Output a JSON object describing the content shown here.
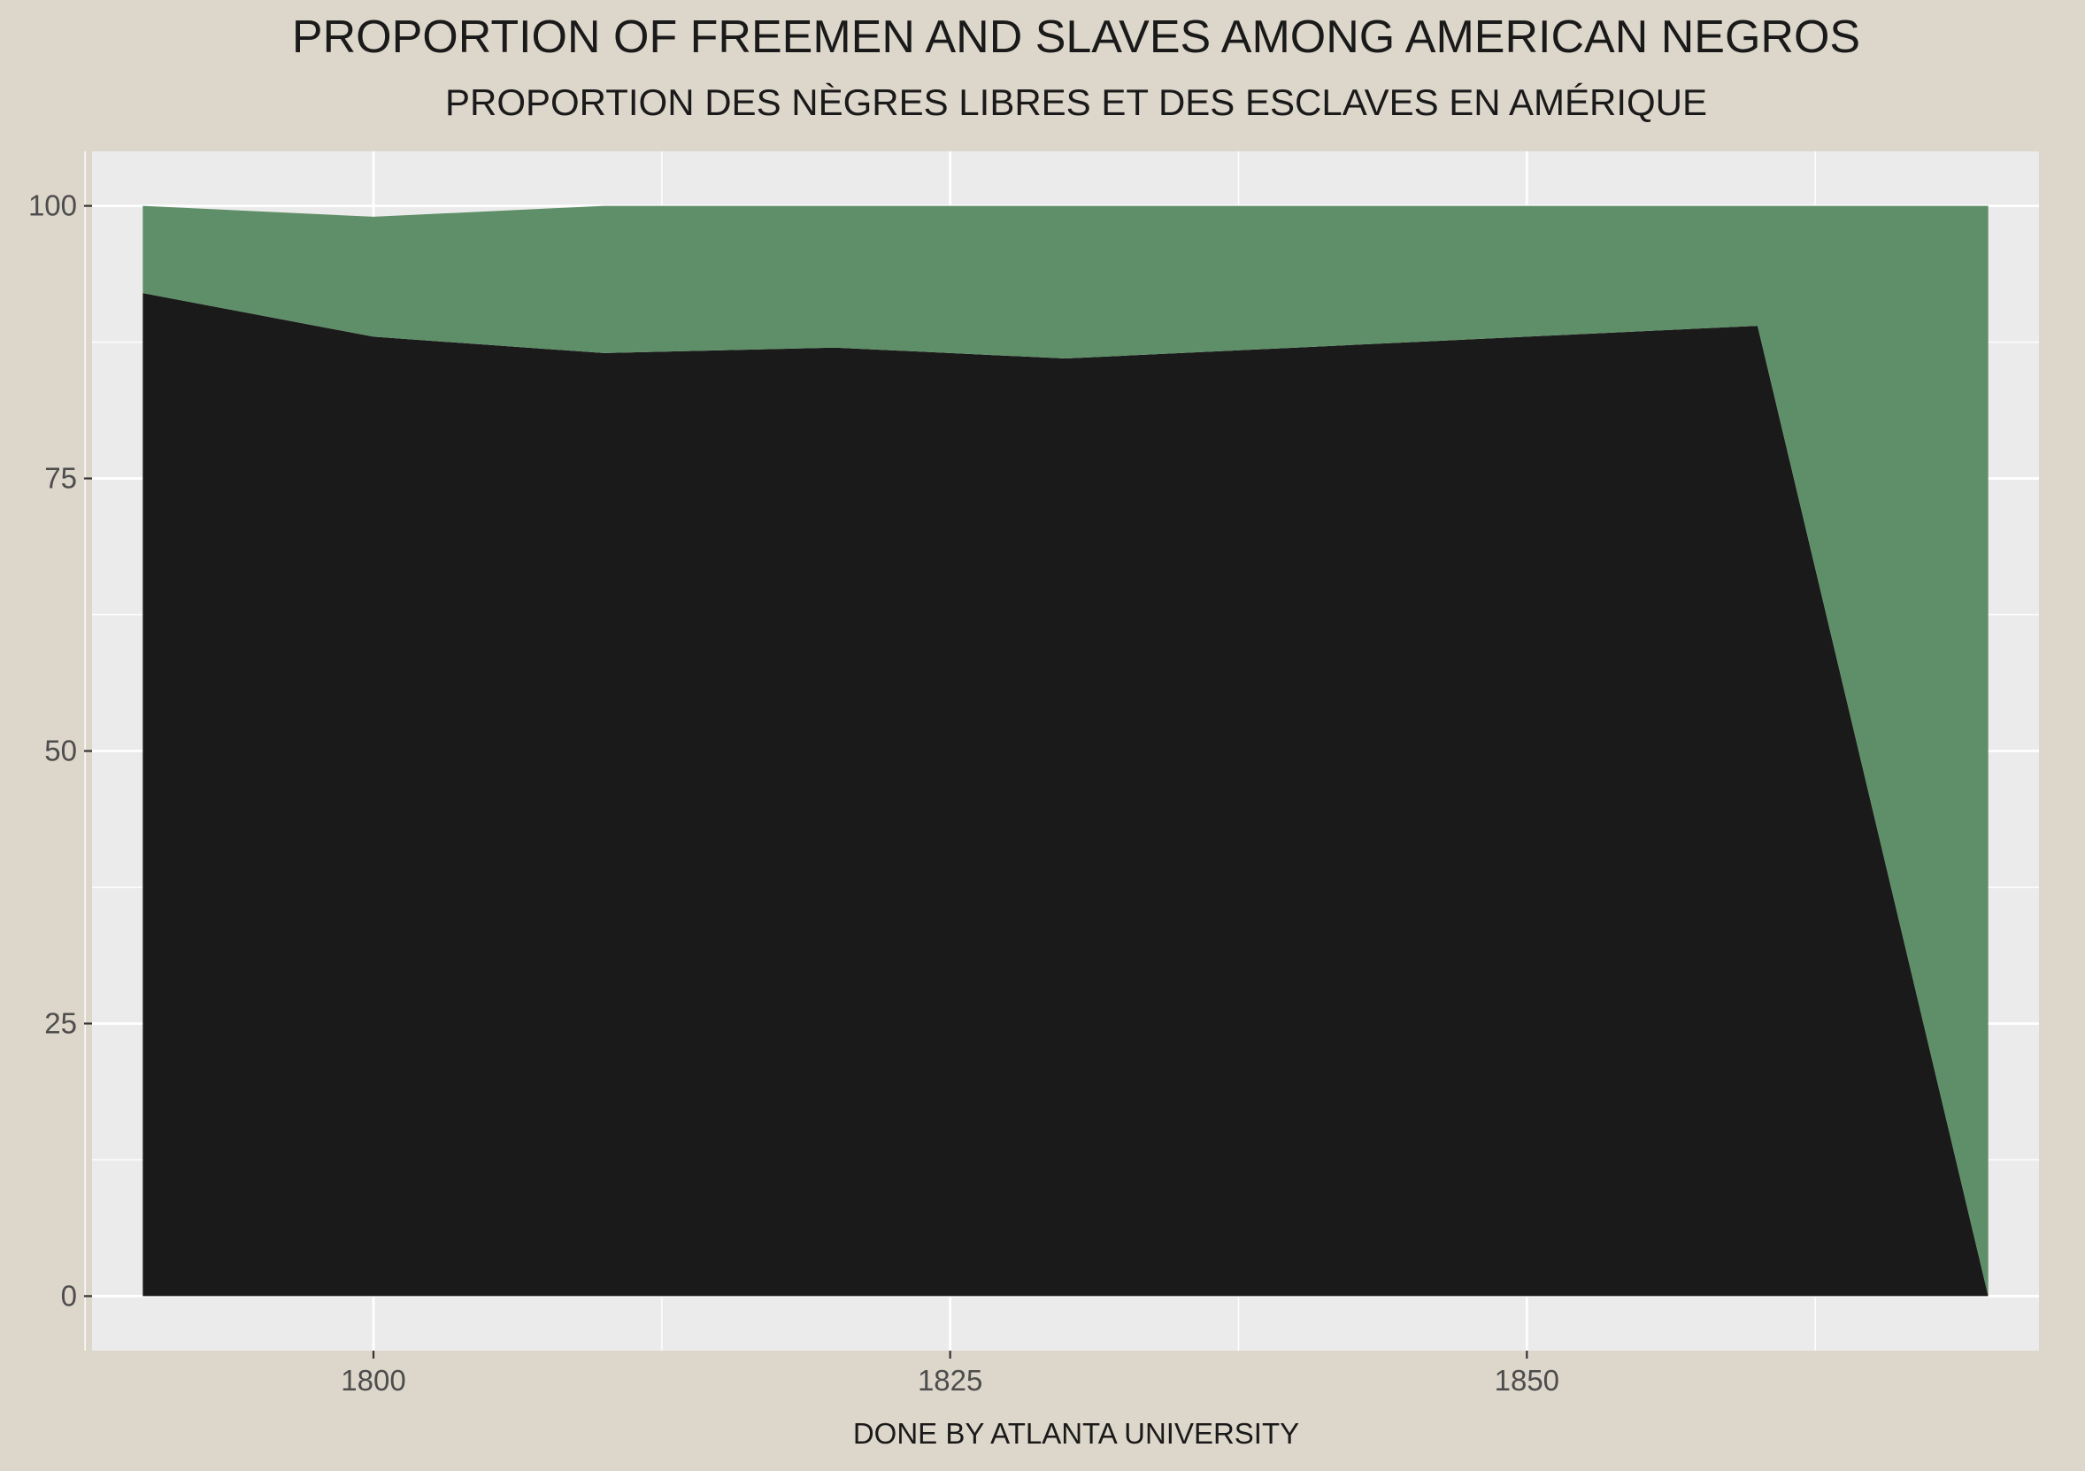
{
  "chart_data": {
    "type": "area",
    "title": "PROPORTION OF FREEMEN AND SLAVES AMONG AMERICAN NEGROS",
    "subtitle": "PROPORTION DES NÈGRES LIBRES ET DES ESCLAVES EN AMÉRIQUE",
    "xlabel": "DONE BY ATLANTA UNIVERSITY",
    "ylabel": "",
    "stacked": true,
    "x": [
      1790,
      1800,
      1810,
      1820,
      1830,
      1840,
      1850,
      1860,
      1870
    ],
    "series": [
      {
        "values": [
          92,
          88,
          86.5,
          87,
          86,
          87,
          88,
          89,
          0
        ],
        "color": "#1A1A1A"
      },
      {
        "values": [
          8,
          11,
          13.5,
          13,
          14,
          13,
          12,
          11,
          100
        ],
        "color": "#5F8F68"
      }
    ],
    "xlim": [
      1787.8,
      1872.2
    ],
    "ylim": [
      -5,
      105
    ],
    "x_ticks": [
      1800,
      1825,
      1850
    ],
    "x_tick_labels": [
      "1800",
      "1825",
      "1850"
    ],
    "x_minor_ticks": [
      1787.5,
      1812.5,
      1837.5,
      1862.5
    ],
    "y_ticks": [
      0,
      25,
      50,
      75,
      100
    ],
    "y_tick_labels": [
      "0",
      "25",
      "50",
      "75",
      "100"
    ],
    "y_minor_ticks": [
      12.5,
      37.5,
      62.5,
      87.5
    ],
    "grid": true,
    "legend": "none",
    "background_color": "#DDD6CA",
    "panel_color": "#EBEBEB",
    "grid_color": "#FFFFFF",
    "tick_text_color": "#4D4D4D",
    "title_color": "#1A1A1A"
  }
}
